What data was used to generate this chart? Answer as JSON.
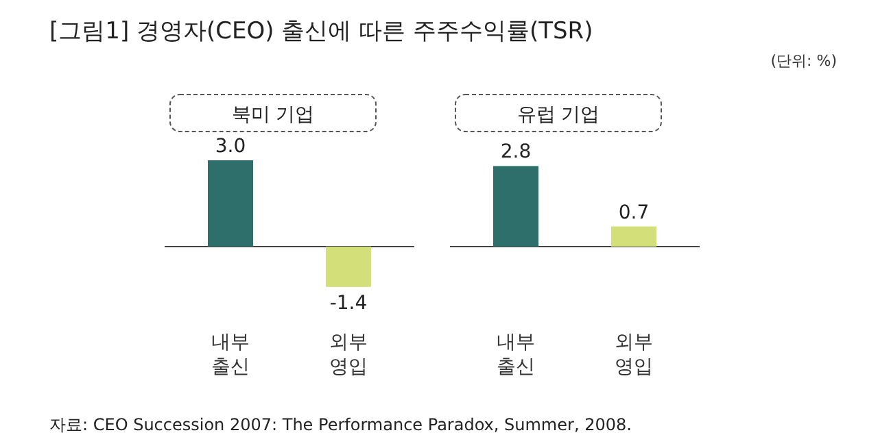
{
  "chart_data": [
    {
      "type": "other",
      "title": "[그림1] 경영자(CEO) 출신에 따른 주주수익률(TSR)",
      "annotations": [
        "(단위: %)",
        "자료: CEO Succession 2007: The Performance Paradox, Summer, 2008."
      ]
    },
    {
      "type": "bar",
      "title": "북미 기업",
      "categories": [
        "내부 출신",
        "외부 영입"
      ],
      "values": [
        3.0,
        -1.4
      ],
      "value_labels": [
        "3.0",
        "-1.4"
      ],
      "colors": [
        "#2e6f6b",
        "#d3e07a"
      ]
    },
    {
      "type": "bar",
      "title": "유럽 기업",
      "categories": [
        "내부 출신",
        "외부 영입"
      ],
      "values": [
        2.8,
        0.7
      ],
      "value_labels": [
        "2.8",
        "0.7"
      ],
      "colors": [
        "#2e6f6b",
        "#d3e07a"
      ]
    }
  ]
}
